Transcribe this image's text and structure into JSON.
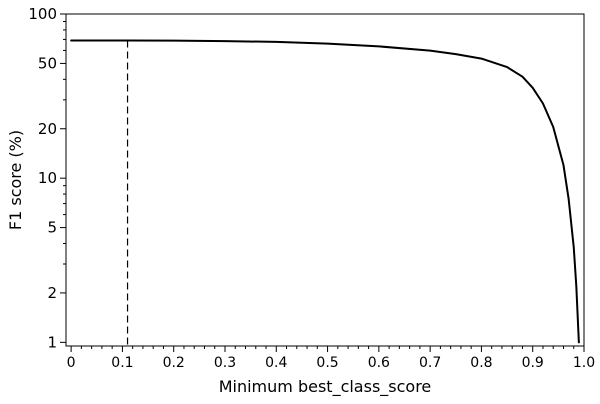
{
  "chart_data": {
    "type": "line",
    "title": "",
    "xlabel": "Minimum best_class_score",
    "ylabel": "F1 score (%)",
    "xlim": [
      -0.01,
      1.0
    ],
    "ylim": [
      0.95,
      100
    ],
    "y_scale": "log",
    "grid": false,
    "legend": "none",
    "x_ticks": [
      {
        "value": 0.0,
        "label": "0"
      },
      {
        "value": 0.1,
        "label": "0.1"
      },
      {
        "value": 0.2,
        "label": "0.2"
      },
      {
        "value": 0.3,
        "label": "0.3"
      },
      {
        "value": 0.4,
        "label": "0.4"
      },
      {
        "value": 0.5,
        "label": "0.5"
      },
      {
        "value": 0.6,
        "label": "0.6"
      },
      {
        "value": 0.7,
        "label": "0.7"
      },
      {
        "value": 0.8,
        "label": "0.8"
      },
      {
        "value": 0.9,
        "label": "0.9"
      },
      {
        "value": 1.0,
        "label": "1.0"
      }
    ],
    "y_ticks": [
      {
        "value": 1,
        "label": "1"
      },
      {
        "value": 2,
        "label": "2"
      },
      {
        "value": 5,
        "label": "5"
      },
      {
        "value": 10,
        "label": "10"
      },
      {
        "value": 20,
        "label": "20"
      },
      {
        "value": 50,
        "label": "50"
      },
      {
        "value": 100,
        "label": "100"
      }
    ],
    "series": [
      {
        "style": "solid",
        "color": "#000000",
        "x": [
          0.0,
          0.1,
          0.2,
          0.3,
          0.4,
          0.5,
          0.6,
          0.7,
          0.75,
          0.8,
          0.85,
          0.88,
          0.9,
          0.92,
          0.94,
          0.96,
          0.97,
          0.98,
          0.985,
          0.99
        ],
        "y": [
          69,
          69,
          68.8,
          68.4,
          67.6,
          66.0,
          63.5,
          59.8,
          57.0,
          53.5,
          47.5,
          41.5,
          35.5,
          28.5,
          20.5,
          12.0,
          7.5,
          3.8,
          2.2,
          1.0
        ]
      }
    ],
    "reference_lines": [
      {
        "orientation": "vertical",
        "x": 0.11,
        "style": "dashed",
        "color": "#000000"
      }
    ]
  }
}
